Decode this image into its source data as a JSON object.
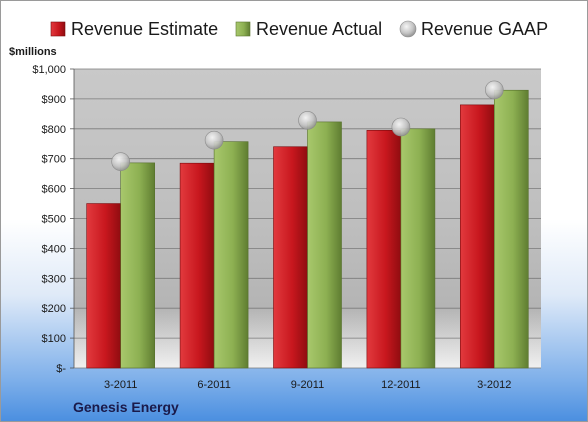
{
  "company": "Genesis Energy",
  "chart_data": {
    "type": "bar",
    "unit_label": "$millions",
    "categories": [
      "3-2011",
      "6-2011",
      "9-2011",
      "12-2011",
      "3-2012"
    ],
    "series": [
      {
        "name": "Revenue Estimate",
        "type": "bar",
        "color": "#c8171e",
        "values": [
          550,
          685,
          740,
          795,
          880
        ]
      },
      {
        "name": "Revenue Actual",
        "type": "bar",
        "color": "#8db052",
        "values": [
          686,
          757,
          823,
          800,
          929
        ]
      },
      {
        "name": "Revenue GAAP",
        "type": "marker",
        "color": "#c4c4c4",
        "values": [
          690,
          762,
          828,
          806,
          930
        ]
      }
    ],
    "ylim": [
      0,
      1000
    ],
    "yticks": [
      0,
      100,
      200,
      300,
      400,
      500,
      600,
      700,
      800,
      900,
      1000
    ],
    "ytick_labels": [
      "$-",
      "$100",
      "$200",
      "$300",
      "$400",
      "$500",
      "$600",
      "$700",
      "$800",
      "$900",
      "$1,000"
    ],
    "grid": true,
    "legend_position": "top"
  }
}
